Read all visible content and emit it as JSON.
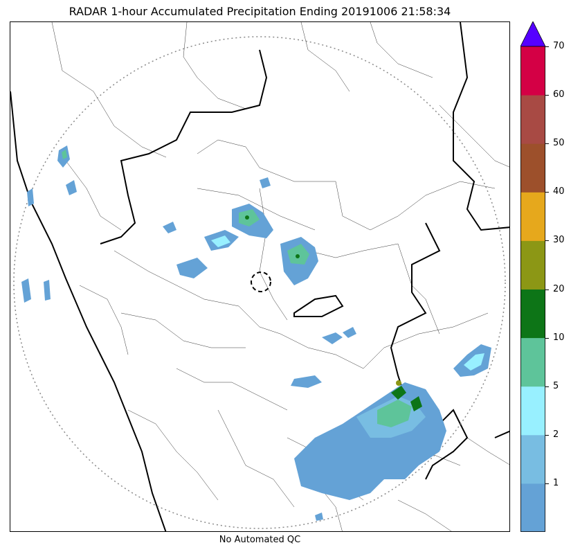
{
  "header": {
    "title": "RADAR 1-hour Accumulated Precipitation Ending 20191006 21:58:34"
  },
  "footer": {
    "qc_note": "No Automated QC"
  },
  "map": {
    "range_ring": "dotted",
    "radar_site_marker": "dashed-circle",
    "state_boundaries": "thick-black",
    "district_boundaries": "thin-black"
  },
  "colorbar": {
    "extend": "max",
    "extend_color": "#5500ff",
    "levels": [
      {
        "value": "",
        "color": "#64a2d6"
      },
      {
        "value": "1",
        "color": "#78bde2"
      },
      {
        "value": "2",
        "color": "#98f0ff"
      },
      {
        "value": "5",
        "color": "#5ec49a"
      },
      {
        "value": "10",
        "color": "#0d7517"
      },
      {
        "value": "20",
        "color": "#8c9715"
      },
      {
        "value": "30",
        "color": "#e6a81c"
      },
      {
        "value": "40",
        "color": "#9d502b"
      },
      {
        "value": "50",
        "color": "#a84a44"
      },
      {
        "value": "60",
        "color": "#d40045"
      }
    ],
    "tick_labels": [
      "1",
      "2",
      "5",
      "10",
      "20",
      "30",
      "40",
      "50",
      "60",
      "70"
    ]
  }
}
